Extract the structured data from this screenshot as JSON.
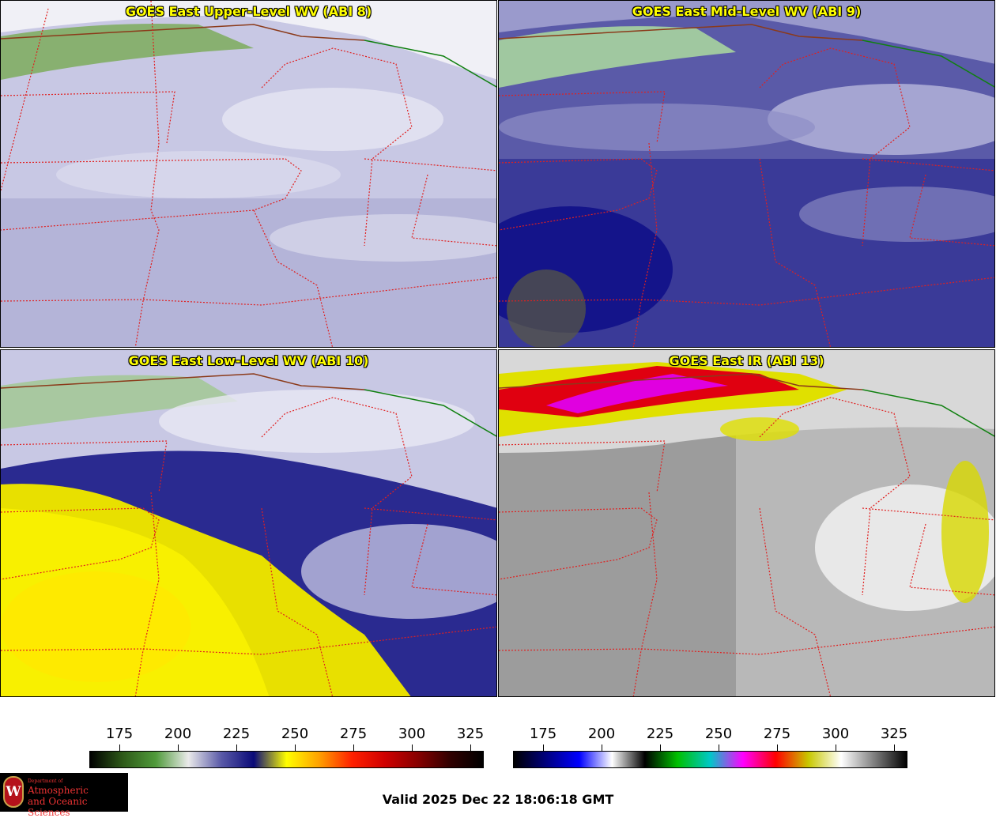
{
  "panels": [
    {
      "title": "GOES East Upper-Level WV (ABI 8)"
    },
    {
      "title": "GOES East Mid-Level WV (ABI 9)"
    },
    {
      "title": "GOES East Low-Level WV (ABI 10)"
    },
    {
      "title": "GOES East IR (ABI 13)"
    }
  ],
  "colorbar_left": {
    "ticks": [
      "175",
      "200",
      "225",
      "250",
      "275",
      "300",
      "325"
    ],
    "colors": [
      "#000000",
      "#2e5a18",
      "#4f9a3a",
      "#eaeaea",
      "#5a5aa8",
      "#0a0a78",
      "#ffff00",
      "#ffa000",
      "#ff2000",
      "#d00000",
      "#880000",
      "#300000",
      "#000000"
    ]
  },
  "colorbar_right": {
    "ticks": [
      "175",
      "200",
      "225",
      "250",
      "275",
      "300",
      "325"
    ],
    "colors": [
      "#000000",
      "#000080",
      "#0000ff",
      "#ffffff",
      "#000000",
      "#00c000",
      "#00c8c8",
      "#ff00ff",
      "#ff0000",
      "#c8c800",
      "#ffffff",
      "#808080",
      "#000000"
    ]
  },
  "logo": {
    "line1": "Department of",
    "line2": "Atmospheric",
    "line3": "and Oceanic Sciences",
    "mark": "W"
  },
  "valid_time": "Valid 2025 Dec 22 18:06:18 GMT"
}
